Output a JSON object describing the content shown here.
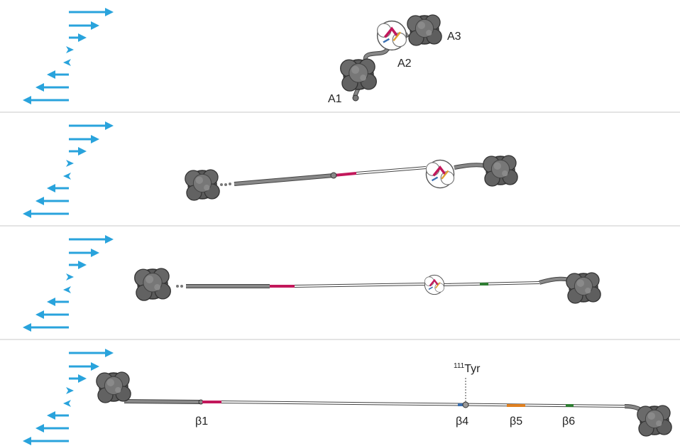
{
  "panel_1": {
    "domain_labels": [
      "A1",
      "A2",
      "A3"
    ]
  },
  "panel_4": {
    "strand_labels": [
      "β1",
      "β4",
      "β5",
      "β6"
    ],
    "residue": {
      "number": "111",
      "name": "Tyr"
    }
  }
}
